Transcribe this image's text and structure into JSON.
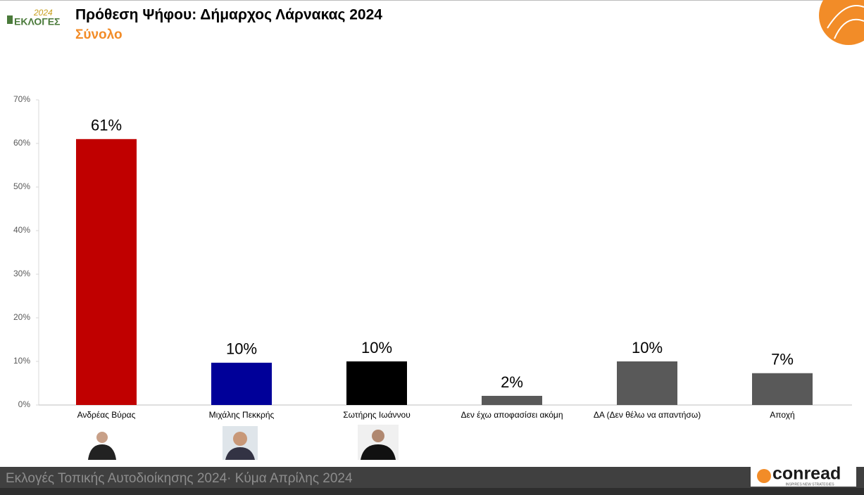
{
  "header": {
    "logo_year": "2024",
    "logo_text": "ΕΚΛΟΓΕΣ"
  },
  "chart_data": {
    "type": "bar",
    "title": "Πρόθεση Ψήφου: Δήμαρχος Λάρνακας 2024",
    "subtitle": "Σύνολο",
    "categories": [
      "Ανδρέας Βύρας",
      "Μιχάλης Πεκκρής",
      "Σωτήρης Ιωάννου",
      "Δεν έχω αποφασίσει ακόμη",
      "ΔΑ (Δεν θέλω να απαντήσω)",
      "Αποχή"
    ],
    "values": [
      61,
      9.7,
      10,
      2.1,
      10,
      7.3
    ],
    "value_labels": [
      "61%",
      "10%",
      "10%",
      "2%",
      "10%",
      "7%"
    ],
    "colors": [
      "#c00000",
      "#000099",
      "#000000",
      "#595959",
      "#595959",
      "#595959"
    ],
    "ylim": [
      0,
      70
    ],
    "yticks": [
      {
        "value": 0,
        "label": "0%"
      },
      {
        "value": 10,
        "label": "10%"
      },
      {
        "value": 20,
        "label": "20%"
      },
      {
        "value": 30,
        "label": "30%"
      },
      {
        "value": 40,
        "label": "40%"
      },
      {
        "value": 50,
        "label": "50%"
      },
      {
        "value": 60,
        "label": "60%"
      },
      {
        "value": 70,
        "label": "70%"
      }
    ],
    "grid": false
  },
  "footer": {
    "text": "Εκλογές Τοπικής Αυτοδιοίκησης 2024· Κύμα Απρίλης 2024",
    "brand": "conread",
    "brand_tagline": "INSPIRES NEW STRATEGIES"
  }
}
